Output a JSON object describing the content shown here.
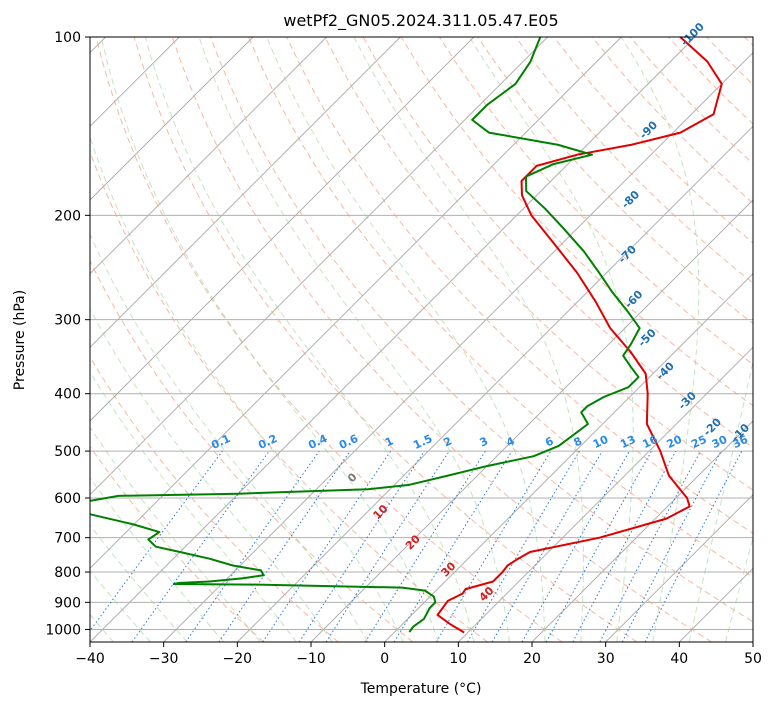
{
  "chart_data": {
    "type": "line",
    "title": "wetPf2_GN05.2024.311.05.47.E05",
    "xlabel": "Temperature (°C)",
    "ylabel": "Pressure (hPa)",
    "xlim": [
      -40,
      50
    ],
    "ylim": [
      1050,
      100
    ],
    "yscale": "log",
    "skew": 45,
    "grid": true,
    "x_ticks": [
      -40,
      -30,
      -20,
      -10,
      0,
      10,
      20,
      30,
      40,
      50
    ],
    "y_ticks": [
      100,
      200,
      300,
      400,
      500,
      600,
      700,
      800,
      900,
      1000
    ],
    "series": [
      {
        "color": "#e00000",
        "points": [
          [
            1012,
            9.5
          ],
          [
            980,
            6.5
          ],
          [
            945,
            3.5
          ],
          [
            915,
            3.2
          ],
          [
            895,
            3.0
          ],
          [
            870,
            4.0
          ],
          [
            855,
            3.8
          ],
          [
            830,
            6.5
          ],
          [
            800,
            6.5
          ],
          [
            780,
            6.3
          ],
          [
            760,
            6.8
          ],
          [
            740,
            7.5
          ],
          [
            700,
            15.0
          ],
          [
            650,
            21.5
          ],
          [
            620,
            23.0
          ],
          [
            600,
            21.5
          ],
          [
            550,
            16.0
          ],
          [
            500,
            11.5
          ],
          [
            450,
            6.0
          ],
          [
            400,
            2.0
          ],
          [
            370,
            -1.0
          ],
          [
            340,
            -6.0
          ],
          [
            310,
            -12.0
          ],
          [
            280,
            -17.5
          ],
          [
            250,
            -24.0
          ],
          [
            220,
            -32.0
          ],
          [
            200,
            -38.0
          ],
          [
            185,
            -42.0
          ],
          [
            175,
            -44.0
          ],
          [
            165,
            -44.0
          ],
          [
            158,
            -40.0
          ],
          [
            152,
            -34.0
          ],
          [
            145,
            -29.0
          ],
          [
            135,
            -27.0
          ],
          [
            120,
            -30.0
          ],
          [
            110,
            -35.0
          ],
          [
            100,
            -42.0
          ]
        ]
      },
      {
        "color": "#008000",
        "points": [
          [
            1010,
            2.0
          ],
          [
            990,
            1.8
          ],
          [
            960,
            2.2
          ],
          [
            920,
            1.5
          ],
          [
            900,
            1.5
          ],
          [
            880,
            0.5
          ],
          [
            860,
            -1.5
          ],
          [
            850,
            -5.0
          ],
          [
            840,
            -25.0
          ],
          [
            838,
            -36.5
          ],
          [
            835,
            -36.0
          ],
          [
            830,
            -32.0
          ],
          [
            820,
            -28.0
          ],
          [
            810,
            -25.5
          ],
          [
            795,
            -26.5
          ],
          [
            780,
            -31.0
          ],
          [
            760,
            -35.0
          ],
          [
            740,
            -40.0
          ],
          [
            725,
            -44.0
          ],
          [
            705,
            -46.0
          ],
          [
            685,
            -45.5
          ],
          [
            665,
            -50.0
          ],
          [
            630,
            -60.0
          ],
          [
            610,
            -60.0
          ],
          [
            595,
            -56.0
          ],
          [
            590,
            -40.0
          ],
          [
            580,
            -23.0
          ],
          [
            570,
            -18.0
          ],
          [
            550,
            -14.0
          ],
          [
            530,
            -10.0
          ],
          [
            510,
            -5.0
          ],
          [
            490,
            -3.0
          ],
          [
            470,
            -2.5
          ],
          [
            450,
            -2.0
          ],
          [
            430,
            -4.5
          ],
          [
            420,
            -4.5
          ],
          [
            405,
            -3.5
          ],
          [
            390,
            -1.5
          ],
          [
            375,
            -1.5
          ],
          [
            360,
            -4.0
          ],
          [
            345,
            -6.5
          ],
          [
            330,
            -7.0
          ],
          [
            310,
            -8.0
          ],
          [
            290,
            -12.0
          ],
          [
            270,
            -16.5
          ],
          [
            250,
            -21.0
          ],
          [
            230,
            -26.0
          ],
          [
            210,
            -32.0
          ],
          [
            195,
            -37.0
          ],
          [
            182,
            -42.0
          ],
          [
            172,
            -44.0
          ],
          [
            164,
            -42.0
          ],
          [
            158,
            -38.0
          ],
          [
            152,
            -44.0
          ],
          [
            145,
            -55.0
          ],
          [
            138,
            -59.0
          ],
          [
            130,
            -59.0
          ],
          [
            120,
            -58.0
          ],
          [
            110,
            -59.0
          ],
          [
            100,
            -61.0
          ]
        ]
      }
    ],
    "isotherms_step": 10,
    "dry_adiabats_thetas": [
      -20,
      -10,
      0,
      10,
      20,
      30,
      40,
      50,
      60,
      70,
      80,
      90,
      100,
      110,
      120,
      130,
      140,
      150,
      160,
      170,
      180,
      190,
      200,
      210,
      220,
      230
    ],
    "moist_adiabats_theta_e": [
      -40,
      -35,
      -30,
      -25,
      -20,
      -15,
      -10,
      -5,
      0,
      5,
      10,
      15,
      20,
      25,
      30,
      35,
      40,
      45,
      50
    ],
    "mixing_ratio_lines": [
      "0.1",
      "0.2",
      "0.4",
      "0.6",
      "1",
      "1.5",
      "2",
      "3",
      "4",
      "6",
      "8",
      "10",
      "13",
      "16",
      "20",
      "25",
      "30",
      "36"
    ],
    "wetbulb_labels": [
      "-100",
      "-90",
      "-80",
      "-70",
      "-60",
      "-50",
      "-40",
      "-30",
      "-20",
      "-10"
    ],
    "wetbulb_values": [
      -100,
      -90,
      -80,
      -70,
      -60,
      -50,
      -40,
      -30,
      -20,
      -10
    ],
    "red_labels": [
      "0",
      "10",
      "20",
      "30",
      "40"
    ],
    "red_values": [
      0,
      10,
      20,
      30,
      40
    ]
  }
}
